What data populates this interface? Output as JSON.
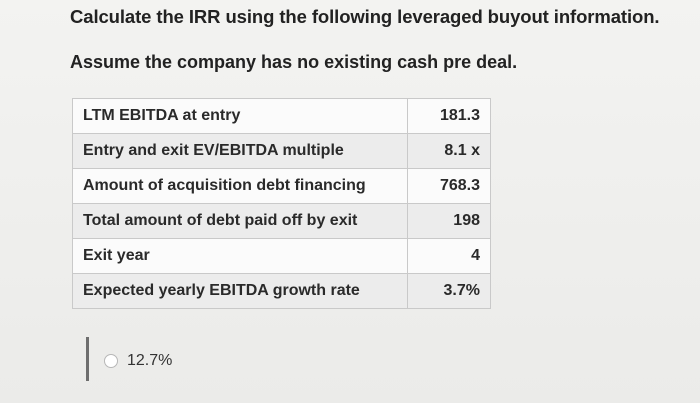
{
  "question": {
    "prompt": "Calculate the IRR using the following leveraged buyout information.",
    "assumption": "Assume the company has no existing cash pre deal."
  },
  "table": {
    "rows": [
      {
        "label": "LTM EBITDA at entry",
        "value": "181.3"
      },
      {
        "label": "Entry and exit EV/EBITDA multiple",
        "value": "8.1 x"
      },
      {
        "label": "Amount of acquisition debt financing",
        "value": "768.3"
      },
      {
        "label": "Total amount of debt paid off by exit",
        "value": "198"
      },
      {
        "label": "Exit year",
        "value": "4"
      },
      {
        "label": "Expected yearly EBITDA growth rate",
        "value": "3.7%"
      }
    ]
  },
  "answer": {
    "option_label": "12.7%",
    "selected": false
  }
}
